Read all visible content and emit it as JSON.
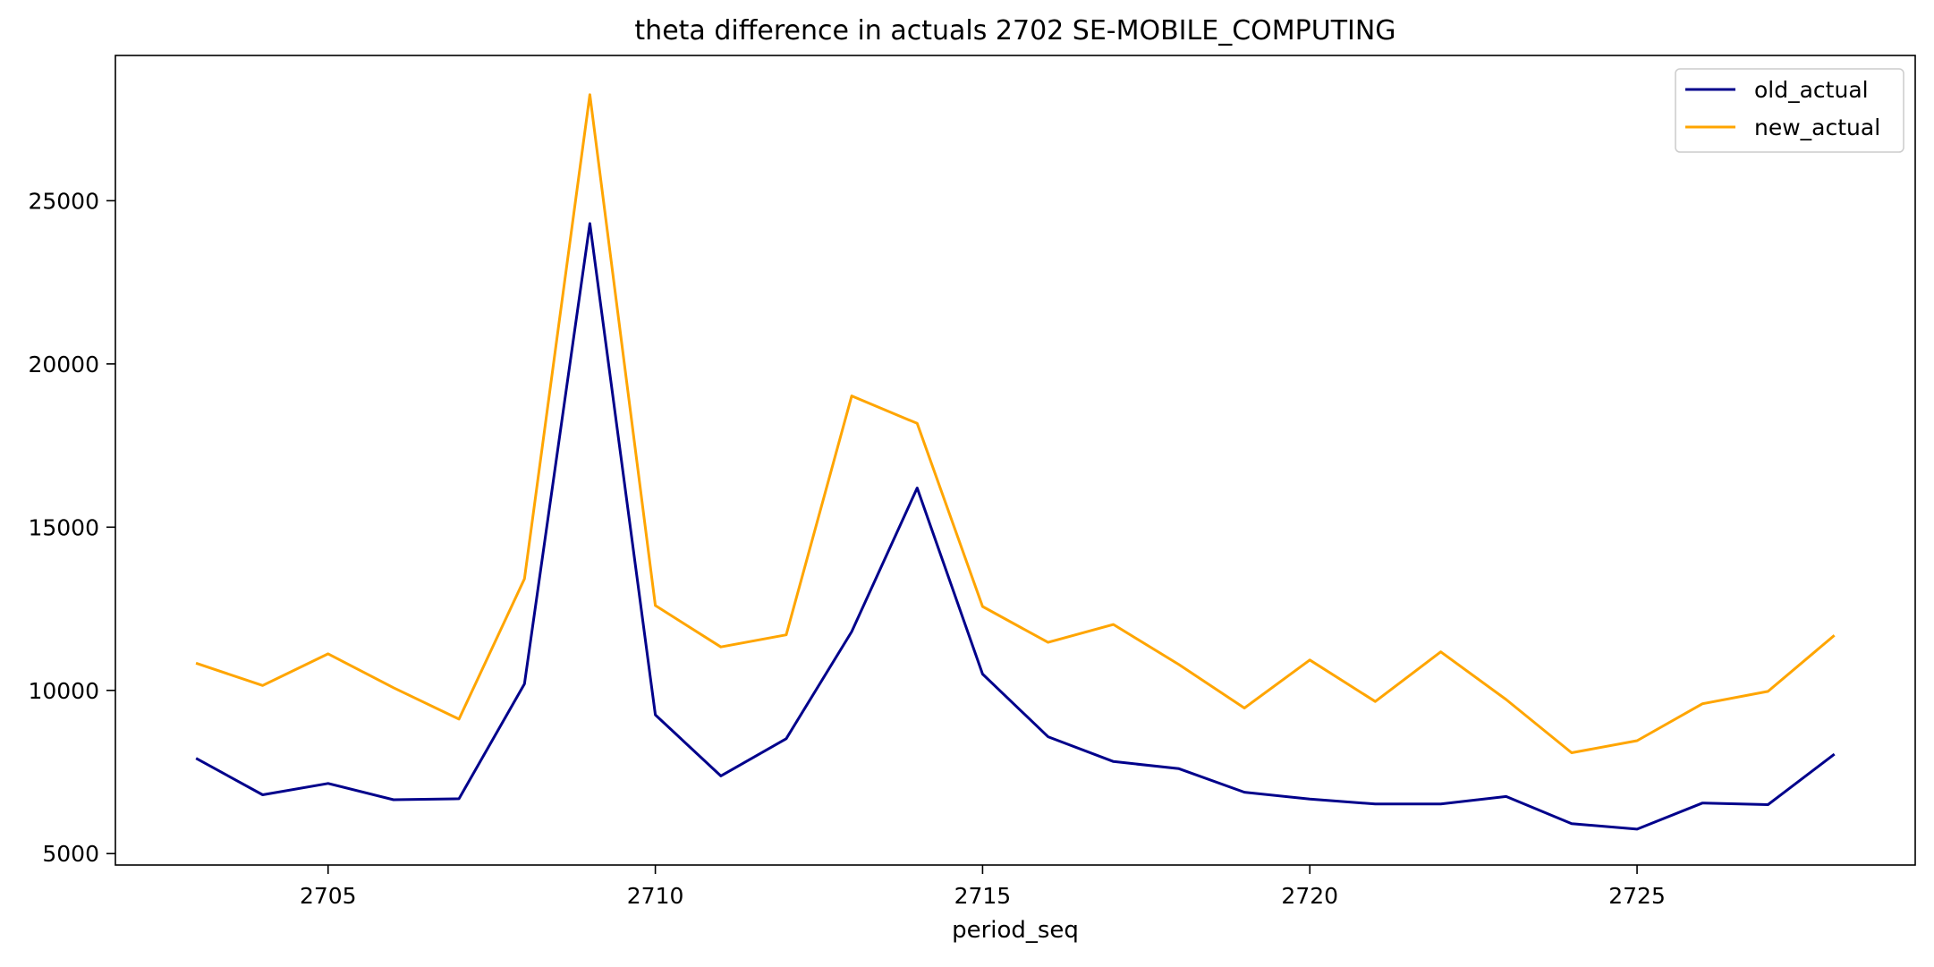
{
  "chart_data": {
    "type": "line",
    "title": "theta difference in actuals 2702 SE-MOBILE_COMPUTING",
    "xlabel": "period_seq",
    "ylabel": "",
    "x": [
      2703,
      2704,
      2705,
      2706,
      2707,
      2708,
      2709,
      2710,
      2711,
      2712,
      2713,
      2714,
      2715,
      2716,
      2717,
      2718,
      2719,
      2720,
      2721,
      2722,
      2723,
      2724,
      2725,
      2726,
      2727,
      2728
    ],
    "xlim": [
      2701.75,
      2729.25
    ],
    "ylim": [
      4650,
      29450
    ],
    "xticks": [
      2705,
      2710,
      2715,
      2720,
      2725
    ],
    "yticks": [
      5000,
      10000,
      15000,
      20000,
      25000
    ],
    "xtick_labels": [
      "2705",
      "2710",
      "2715",
      "2720",
      "2725"
    ],
    "ytick_labels": [
      "5000",
      "10000",
      "15000",
      "20000",
      "25000"
    ],
    "grid": false,
    "legend_position": "top-right",
    "series": [
      {
        "name": "old_actual",
        "color": "#00008b",
        "values": [
          7900,
          6800,
          7150,
          6650,
          6680,
          10200,
          24300,
          9250,
          7380,
          8520,
          11800,
          16200,
          10500,
          8580,
          7820,
          7600,
          6880,
          6670,
          6520,
          6520,
          6750,
          5920,
          5750,
          6550,
          6500,
          8020
        ]
      },
      {
        "name": "new_actual",
        "color": "#ffa500",
        "values": [
          10820,
          10150,
          11120,
          10080,
          9120,
          13420,
          28250,
          12600,
          11330,
          11700,
          19020,
          18180,
          12570,
          11470,
          12020,
          10790,
          9460,
          10930,
          9660,
          11180,
          9720,
          8090,
          8460,
          9590,
          9970,
          11660
        ]
      }
    ]
  }
}
